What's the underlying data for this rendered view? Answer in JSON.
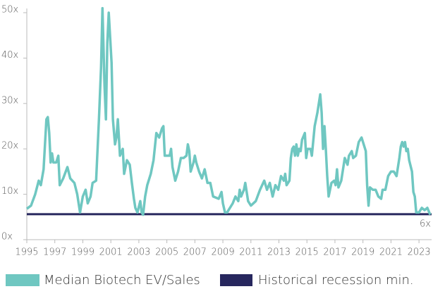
{
  "chart_data": {
    "type": "line",
    "x": [
      1995.0,
      1995.3,
      1995.6,
      1995.85,
      1996.0,
      1996.2,
      1996.4,
      1996.5,
      1996.6,
      1996.7,
      1996.8,
      1996.9,
      1997.1,
      1997.25,
      1997.35,
      1997.6,
      1997.9,
      1998.1,
      1998.4,
      1998.6,
      1998.8,
      1999.0,
      1999.2,
      1999.35,
      1999.55,
      1999.7,
      1999.95,
      2000.15,
      2000.3,
      2000.4,
      2000.55,
      2000.65,
      2000.75,
      2000.85,
      2001.05,
      2001.15,
      2001.3,
      2001.4,
      2001.5,
      2001.65,
      2001.85,
      2001.95,
      2002.15,
      2002.35,
      2002.5,
      2002.65,
      2002.75,
      2002.9,
      2003.1,
      2003.2,
      2003.3,
      2003.45,
      2003.6,
      2003.85,
      2004.05,
      2004.25,
      2004.45,
      2004.65,
      2004.75,
      2004.85,
      2005.2,
      2005.3,
      2005.4,
      2005.6,
      2005.8,
      2006.0,
      2006.2,
      2006.4,
      2006.5,
      2006.6,
      2006.7,
      2006.9,
      2007.0,
      2007.1,
      2007.3,
      2007.5,
      2007.7,
      2007.9,
      2008.1,
      2008.3,
      2008.7,
      2008.9,
      2009.0,
      2009.15,
      2009.3,
      2009.7,
      2009.9,
      2010.1,
      2010.2,
      2010.3,
      2010.5,
      2010.6,
      2010.8,
      2011.0,
      2011.35,
      2011.65,
      2011.95,
      2012.15,
      2012.35,
      2012.55,
      2012.75,
      2012.95,
      2013.15,
      2013.35,
      2013.45,
      2013.55,
      2013.75,
      2013.85,
      2013.95,
      2014.05,
      2014.15,
      2014.25,
      2014.35,
      2014.45,
      2014.55,
      2014.65,
      2014.85,
      2014.95,
      2015.05,
      2015.25,
      2015.35,
      2015.55,
      2015.75,
      2015.95,
      2016.05,
      2016.15,
      2016.25,
      2016.35,
      2016.45,
      2016.55,
      2016.75,
      2016.95,
      2017.05,
      2017.15,
      2017.25,
      2017.45,
      2017.7,
      2017.9,
      2018.0,
      2018.2,
      2018.3,
      2018.5,
      2018.7,
      2018.9,
      2019.0,
      2019.2,
      2019.3,
      2019.4,
      2019.5,
      2019.7,
      2019.9,
      2020.1,
      2020.3,
      2020.4,
      2020.6,
      2020.8,
      2021.0,
      2021.2,
      2021.4,
      2021.6,
      2021.7,
      2021.8,
      2021.9,
      2022.0,
      2022.1,
      2022.2,
      2022.3,
      2022.5,
      2022.6,
      2022.7,
      2022.8,
      2023.0,
      2023.2,
      2023.4,
      2023.6,
      2023.8
    ],
    "series": [
      {
        "name": "Median Biotech EV/Sales",
        "color": "#6fc7c1",
        "values": [
          6.8,
          7.5,
          10,
          13,
          12,
          15.5,
          26.5,
          27,
          23.5,
          17,
          19,
          17,
          17,
          18.5,
          12,
          13.5,
          16,
          13.5,
          12.5,
          10,
          6,
          9.5,
          11,
          8,
          9.5,
          12.5,
          13,
          26.5,
          38,
          51,
          34,
          26.5,
          43.5,
          50,
          39,
          26.5,
          21,
          22.5,
          26.5,
          18.5,
          20,
          14.5,
          17.5,
          16.5,
          12.5,
          9,
          7,
          6,
          8.5,
          6,
          5.5,
          9.5,
          12,
          14.5,
          17.5,
          23.5,
          22.5,
          24.5,
          25,
          18.5,
          18.5,
          20,
          16,
          13,
          15,
          18,
          18,
          18.5,
          21,
          19.5,
          15,
          17,
          18.5,
          17,
          15,
          13.5,
          15.5,
          12.5,
          12.5,
          9.5,
          9,
          10.5,
          8,
          6,
          6,
          8,
          9.5,
          8.5,
          11,
          9.5,
          11,
          12.5,
          8.5,
          7.5,
          8.5,
          11,
          13,
          11,
          12.5,
          9.5,
          12,
          11,
          14,
          13,
          14.5,
          12,
          13,
          18,
          20,
          20.5,
          18.5,
          21,
          18.5,
          20,
          19.5,
          22,
          23.5,
          18,
          20,
          20,
          18.5,
          25,
          28,
          32,
          28,
          20,
          25,
          20,
          14,
          9.5,
          12.5,
          13,
          12,
          15.5,
          11.5,
          13,
          18,
          16.5,
          18.5,
          19.5,
          18,
          18.5,
          21.5,
          22.5,
          21.5,
          19.5,
          12,
          7.5,
          11.5,
          11,
          11,
          9.5,
          9,
          11,
          11,
          14,
          15,
          15,
          14,
          18,
          20.5,
          21.5,
          20.5,
          21.5,
          19.5,
          20,
          17.5,
          15,
          10.5,
          9.5,
          6,
          6,
          7,
          6.5,
          7,
          5.5
        ]
      }
    ],
    "reference_line": {
      "name": "Historical recession min.",
      "color": "#27275e",
      "value": 5.6,
      "value_label": "6x"
    },
    "xlim": [
      1995,
      2023.9
    ],
    "xticks": [
      1995,
      1997,
      1999,
      2001,
      2003,
      2005,
      2007,
      2009,
      2011,
      2013,
      2015,
      2017,
      2019,
      2021,
      2023
    ],
    "ylim": [
      0,
      50
    ],
    "yticks": [
      {
        "value": 0,
        "label": "0x"
      },
      {
        "value": 10,
        "label": "10x"
      },
      {
        "value": 20,
        "label": "20x"
      },
      {
        "value": 30,
        "label": "30x"
      },
      {
        "value": 40,
        "label": "40x"
      },
      {
        "value": 50,
        "label": "50x"
      }
    ]
  }
}
